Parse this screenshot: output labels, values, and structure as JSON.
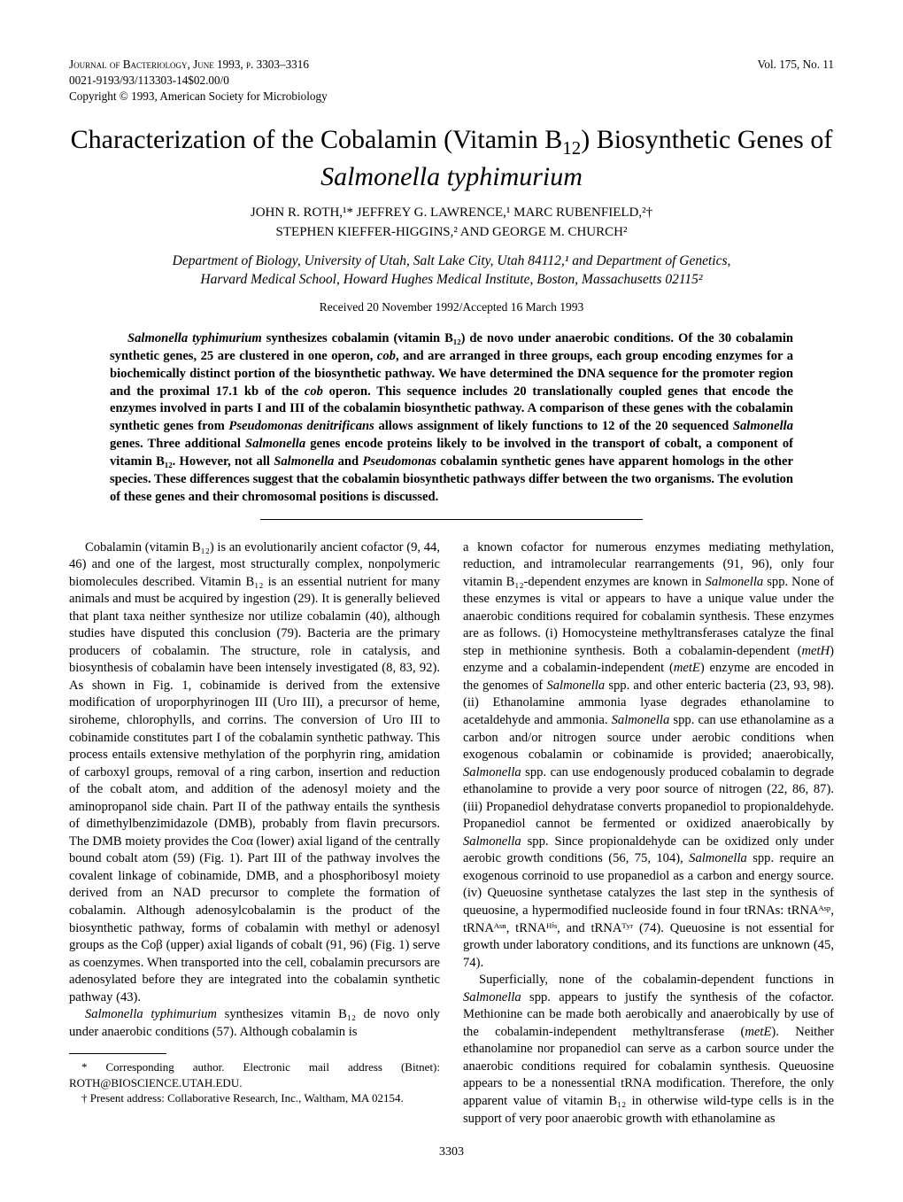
{
  "header": {
    "journal_line": "Journal of Bacteriology, June 1993, p. 3303–3316",
    "issn_line": "0021-9193/93/113303-14$02.00/0",
    "copyright_line": "Copyright © 1993, American Society for Microbiology",
    "vol_line": "Vol. 175, No. 11"
  },
  "title": {
    "pre": "Characterization of the Cobalamin (Vitamin B",
    "sub": "12",
    "post": ") Biosynthetic Genes of ",
    "species": "Salmonella typhimurium"
  },
  "authors": {
    "line1": "JOHN R. ROTH,¹* JEFFREY G. LAWRENCE,¹ MARC RUBENFIELD,²†",
    "line2": "STEPHEN KIEFFER-HIGGINS,² AND GEORGE M. CHURCH²"
  },
  "affil": {
    "line1": "Department of Biology, University of Utah, Salt Lake City, Utah 84112,¹ and Department of Genetics,",
    "line2": "Harvard Medical School, Howard Hughes Medical Institute, Boston, Massachusetts 02115²"
  },
  "received": "Received 20 November 1992/Accepted 16 March 1993",
  "abstract": {
    "p1a": "Salmonella typhimurium",
    "p1b": " synthesizes cobalamin (vitamin B₁₂) de novo under anaerobic conditions. Of the 30 cobalamin synthetic genes, 25 are clustered in one operon, ",
    "p1c": "cob",
    "p1d": ", and are arranged in three groups, each group encoding enzymes for a biochemically distinct portion of the biosynthetic pathway. We have determined the DNA sequence for the promoter region and the proximal 17.1 kb of the ",
    "p1e": "cob",
    "p1f": " operon. This sequence includes 20 translationally coupled genes that encode the enzymes involved in parts I and III of the cobalamin biosynthetic pathway. A comparison of these genes with the cobalamin synthetic genes from ",
    "p1g": "Pseudomonas denitrificans",
    "p1h": " allows assignment of likely functions to 12 of the 20 sequenced ",
    "p1i": "Salmonella",
    "p1j": " genes. Three additional ",
    "p1k": "Salmonella",
    "p1l": " genes encode proteins likely to be involved in the transport of cobalt, a component of vitamin B₁₂. However, not all ",
    "p1m": "Salmonella",
    "p1n": " and ",
    "p1o": "Pseudomonas",
    "p1p": " cobalamin synthetic genes have apparent homologs in the other species. These differences suggest that the cobalamin biosynthetic pathways differ between the two organisms. The evolution of these genes and their chromosomal positions is discussed."
  },
  "body": {
    "p1": "Cobalamin (vitamin B₁₂) is an evolutionarily ancient cofactor (9, 44, 46) and one of the largest, most structurally complex, nonpolymeric biomolecules described. Vitamin B₁₂ is an essential nutrient for many animals and must be acquired by ingestion (29). It is generally believed that plant taxa neither synthesize nor utilize cobalamin (40), although studies have disputed this conclusion (79). Bacteria are the primary producers of cobalamin. The structure, role in catalysis, and biosynthesis of cobalamin have been intensely investigated (8, 83, 92). As shown in Fig. 1, cobinamide is derived from the extensive modification of uroporphyrinogen III (Uro III), a precursor of heme, siroheme, chlorophylls, and corrins. The conversion of Uro III to cobinamide constitutes part I of the cobalamin synthetic pathway. This process entails extensive methylation of the porphyrin ring, amidation of carboxyl groups, removal of a ring carbon, insertion and reduction of the cobalt atom, and addition of the adenosyl moiety and the aminopropanol side chain. Part II of the pathway entails the synthesis of dimethylbenzimidazole (DMB), probably from flavin precursors. The DMB moiety provides the Coα (lower) axial ligand of the centrally bound cobalt atom (59) (Fig. 1). Part III of the pathway involves the covalent linkage of cobinamide, DMB, and a phosphoribosyl moiety derived from an NAD precursor to complete the formation of cobalamin. Although adenosylcobalamin is the product of the biosynthetic pathway, forms of cobalamin with methyl or adenosyl groups as the Coβ (upper) axial ligands of cobalt (91, 96) (Fig. 1) serve as coenzymes. When transported into the cell, cobalamin precursors are adenosylated before they are integrated into the cobalamin synthetic pathway (43).",
    "p2a": "Salmonella typhimurium ",
    "p2b": "synthesizes vitamin B₁₂ de novo only under anaerobic conditions (57). Although cobalamin is",
    "p3a": "a known cofactor for numerous enzymes mediating methylation, reduction, and intramolecular rearrangements (91, 96), only four vitamin B₁₂-dependent enzymes are known in ",
    "p3b": "Salmonella",
    "p3c": " spp. None of these enzymes is vital or appears to have a unique value under the anaerobic conditions required for cobalamin synthesis. These enzymes are as follows. (i) Homocysteine methyltransferases catalyze the final step in methionine synthesis. Both a cobalamin-dependent (",
    "p3d": "metH",
    "p3e": ") enzyme and a cobalamin-independent (",
    "p3f": "metE",
    "p3g": ") enzyme are encoded in the genomes of ",
    "p3h": "Salmonella",
    "p3i": " spp. and other enteric bacteria (23, 93, 98). (ii) Ethanolamine ammonia lyase degrades ethanolamine to acetaldehyde and ammonia. ",
    "p3j": "Salmonella",
    "p3k": " spp. can use ethanolamine as a carbon and/or nitrogen source under aerobic conditions when exogenous cobalamin or cobinamide is provided; anaerobically, ",
    "p3l": "Salmonella",
    "p3m": " spp. can use endogenously produced cobalamin to degrade ethanolamine to provide a very poor source of nitrogen (22, 86, 87). (iii) Propanediol dehydratase converts propanediol to propionaldehyde. Propanediol cannot be fermented or oxidized anaerobically by ",
    "p3n": "Salmonella",
    "p3o": " spp. Since propionaldehyde can be oxidized only under aerobic growth conditions (56, 75, 104), ",
    "p3p": "Salmonella",
    "p3q": " spp. require an exogenous corrinoid to use propanediol as a carbon and energy source. (iv) Queuosine synthetase catalyzes the last step in the synthesis of queuosine, a hypermodified nucleoside found in four tRNAs: tRNAᴬˢᵖ, tRNAᴬˢⁿ, tRNAᴴⁱˢ, and tRNAᵀʸʳ (74). Queuosine is not essential for growth under laboratory conditions, and its functions are unknown (45, 74).",
    "p4a": "Superficially, none of the cobalamin-dependent functions in ",
    "p4b": "Salmonella",
    "p4c": " spp. appears to justify the synthesis of the cofactor. Methionine can be made both aerobically and anaerobically by use of the cobalamin-independent methyltransferase (",
    "p4d": "metE",
    "p4e": "). Neither ethanolamine nor propanediol can serve as a carbon source under the anaerobic conditions required for cobalamin synthesis. Queuosine appears to be a nonessential tRNA modification. Therefore, the only apparent value of vitamin B₁₂ in otherwise wild-type cells is in the support of very poor anaerobic growth with ethanolamine as"
  },
  "footnotes": {
    "f1": "* Corresponding author. Electronic mail address (Bitnet): ROTH@BIOSCIENCE.UTAH.EDU.",
    "f2": "† Present address: Collaborative Research, Inc., Waltham, MA 02154."
  },
  "page_number": "3303"
}
